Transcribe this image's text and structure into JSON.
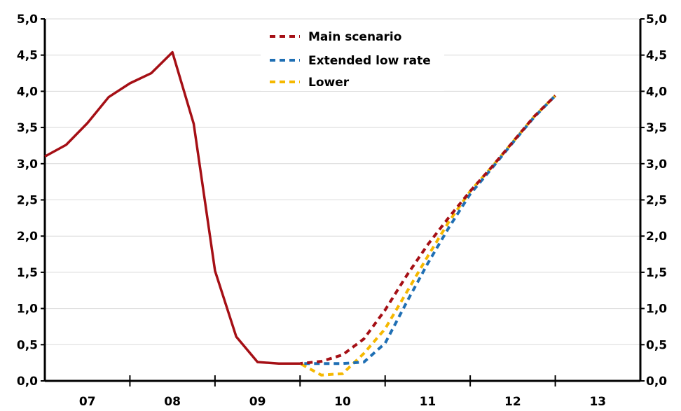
{
  "chart_data": {
    "type": "line",
    "title": "",
    "xlabel": "",
    "ylabel": "",
    "ylim": [
      0,
      5
    ],
    "xlim": [
      2007,
      2014
    ],
    "y_ticks": [
      "0,0",
      "0,5",
      "1,0",
      "1,5",
      "2,0",
      "2,5",
      "3,0",
      "3,5",
      "4,0",
      "4,5",
      "5,0"
    ],
    "x_ticks": [
      "07",
      "08",
      "09",
      "10",
      "11",
      "12",
      "13"
    ],
    "grid": "horizontal",
    "legend_position": "top-center",
    "series": [
      {
        "style": "solid",
        "color": "#a50f15",
        "x": [
          2007.0,
          2007.25,
          2007.5,
          2007.75,
          2008.0,
          2008.25,
          2008.5,
          2008.75,
          2009.0,
          2009.25,
          2009.5,
          2009.75,
          2010.0
        ],
        "y": [
          3.1,
          3.26,
          3.56,
          3.92,
          4.11,
          4.25,
          4.54,
          3.55,
          1.52,
          0.61,
          0.26,
          0.24,
          0.24
        ]
      },
      {
        "name": "Main scenario",
        "style": "dashed",
        "color": "#a50f15",
        "x": [
          2010.0,
          2010.25,
          2010.5,
          2010.75,
          2011.0,
          2011.25,
          2011.5,
          2011.75,
          2012.0,
          2012.25,
          2012.5,
          2012.75,
          2013.0
        ],
        "y": [
          0.24,
          0.27,
          0.36,
          0.58,
          0.98,
          1.45,
          1.88,
          2.26,
          2.62,
          2.95,
          3.3,
          3.65,
          3.94
        ]
      },
      {
        "name": "Extended low rate",
        "style": "dashed",
        "color": "#1f6fb4",
        "x": [
          2010.0,
          2010.25,
          2010.5,
          2010.75,
          2011.0,
          2011.25,
          2011.5,
          2011.75,
          2012.0,
          2012.25,
          2012.5,
          2012.75,
          2013.0
        ],
        "y": [
          0.24,
          0.24,
          0.24,
          0.26,
          0.52,
          1.08,
          1.62,
          2.12,
          2.58,
          2.93,
          3.29,
          3.64,
          3.94
        ]
      },
      {
        "name": "Lower",
        "style": "dashed",
        "color": "#f5b800",
        "x": [
          2010.0,
          2010.25,
          2010.5,
          2010.75,
          2011.0,
          2011.25,
          2011.5,
          2011.75,
          2012.0,
          2012.25,
          2012.5,
          2012.75,
          2013.0
        ],
        "y": [
          0.24,
          0.08,
          0.1,
          0.38,
          0.72,
          1.22,
          1.72,
          2.2,
          2.62,
          2.95,
          3.3,
          3.65,
          3.94
        ]
      }
    ]
  }
}
